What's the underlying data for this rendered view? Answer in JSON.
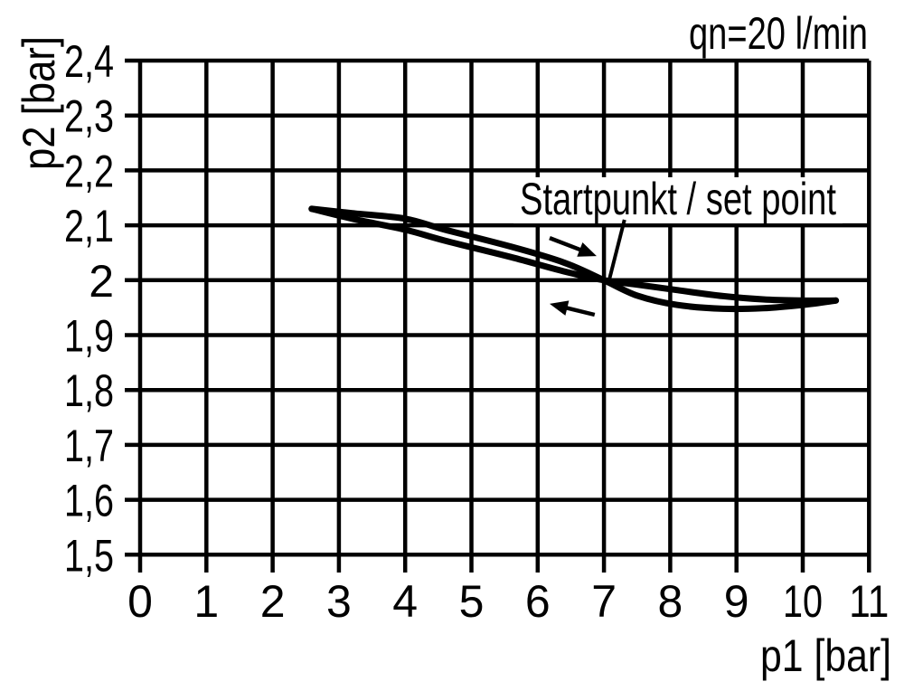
{
  "chart_data": {
    "type": "line",
    "title": "qn=20 l/min",
    "xlabel": "p1 [bar]",
    "ylabel": "p2 [bar]",
    "xlim": [
      0,
      11
    ],
    "ylim": [
      1.5,
      2.4
    ],
    "grid": true,
    "x_ticks": [
      0,
      1,
      2,
      3,
      4,
      5,
      6,
      7,
      8,
      9,
      10,
      11
    ],
    "x_tick_labels": [
      "0",
      "1",
      "2",
      "3",
      "4",
      "5",
      "6",
      "7",
      "8",
      "9",
      "10",
      "11"
    ],
    "y_ticks": [
      2.4,
      2.3,
      2.2,
      2.1,
      2.0,
      1.9,
      1.8,
      1.7,
      1.6,
      1.5
    ],
    "y_tick_labels": [
      "2,4",
      "2,3",
      "2,2",
      "2,1",
      "2",
      "1,9",
      "1,8",
      "1,7",
      "1,6",
      "1,5"
    ],
    "annotation": {
      "text": "Startpunkt / set point",
      "points_to_xy": [
        7.07,
        1.996
      ],
      "leader_from_xy": [
        7.31,
        2.11
      ]
    },
    "series": [
      {
        "name": "hysteresis-branch-upper-left",
        "x": [
          2.59,
          3.2,
          4.0,
          4.6,
          5.6,
          6.4,
          7.0,
          7.5,
          8.1,
          8.8,
          9.4,
          10.0,
          10.5
        ],
        "y": [
          2.13,
          2.122,
          2.112,
          2.092,
          2.061,
          2.032,
          2.0,
          1.972,
          1.955,
          1.948,
          1.949,
          1.955,
          1.963
        ]
      },
      {
        "name": "hysteresis-branch-lower-left",
        "x": [
          2.59,
          3.2,
          4.0,
          4.6,
          5.6,
          6.4,
          7.0,
          7.5,
          8.1,
          8.8,
          9.4,
          10.0,
          10.5
        ],
        "y": [
          2.13,
          2.112,
          2.092,
          2.072,
          2.042,
          2.016,
          2.0,
          1.992,
          1.982,
          1.971,
          1.965,
          1.963,
          1.963
        ]
      }
    ],
    "direction_arrows": [
      {
        "name": "increasing-p1-arrow",
        "from_xy": [
          6.18,
          2.077
        ],
        "to_xy": [
          6.89,
          2.044
        ]
      },
      {
        "name": "decreasing-p1-arrow",
        "from_xy": [
          6.86,
          1.937
        ],
        "to_xy": [
          6.18,
          1.957
        ]
      }
    ],
    "colors": {
      "line": "#000000",
      "grid": "#000000",
      "text": "#000000",
      "background": "#ffffff"
    }
  }
}
